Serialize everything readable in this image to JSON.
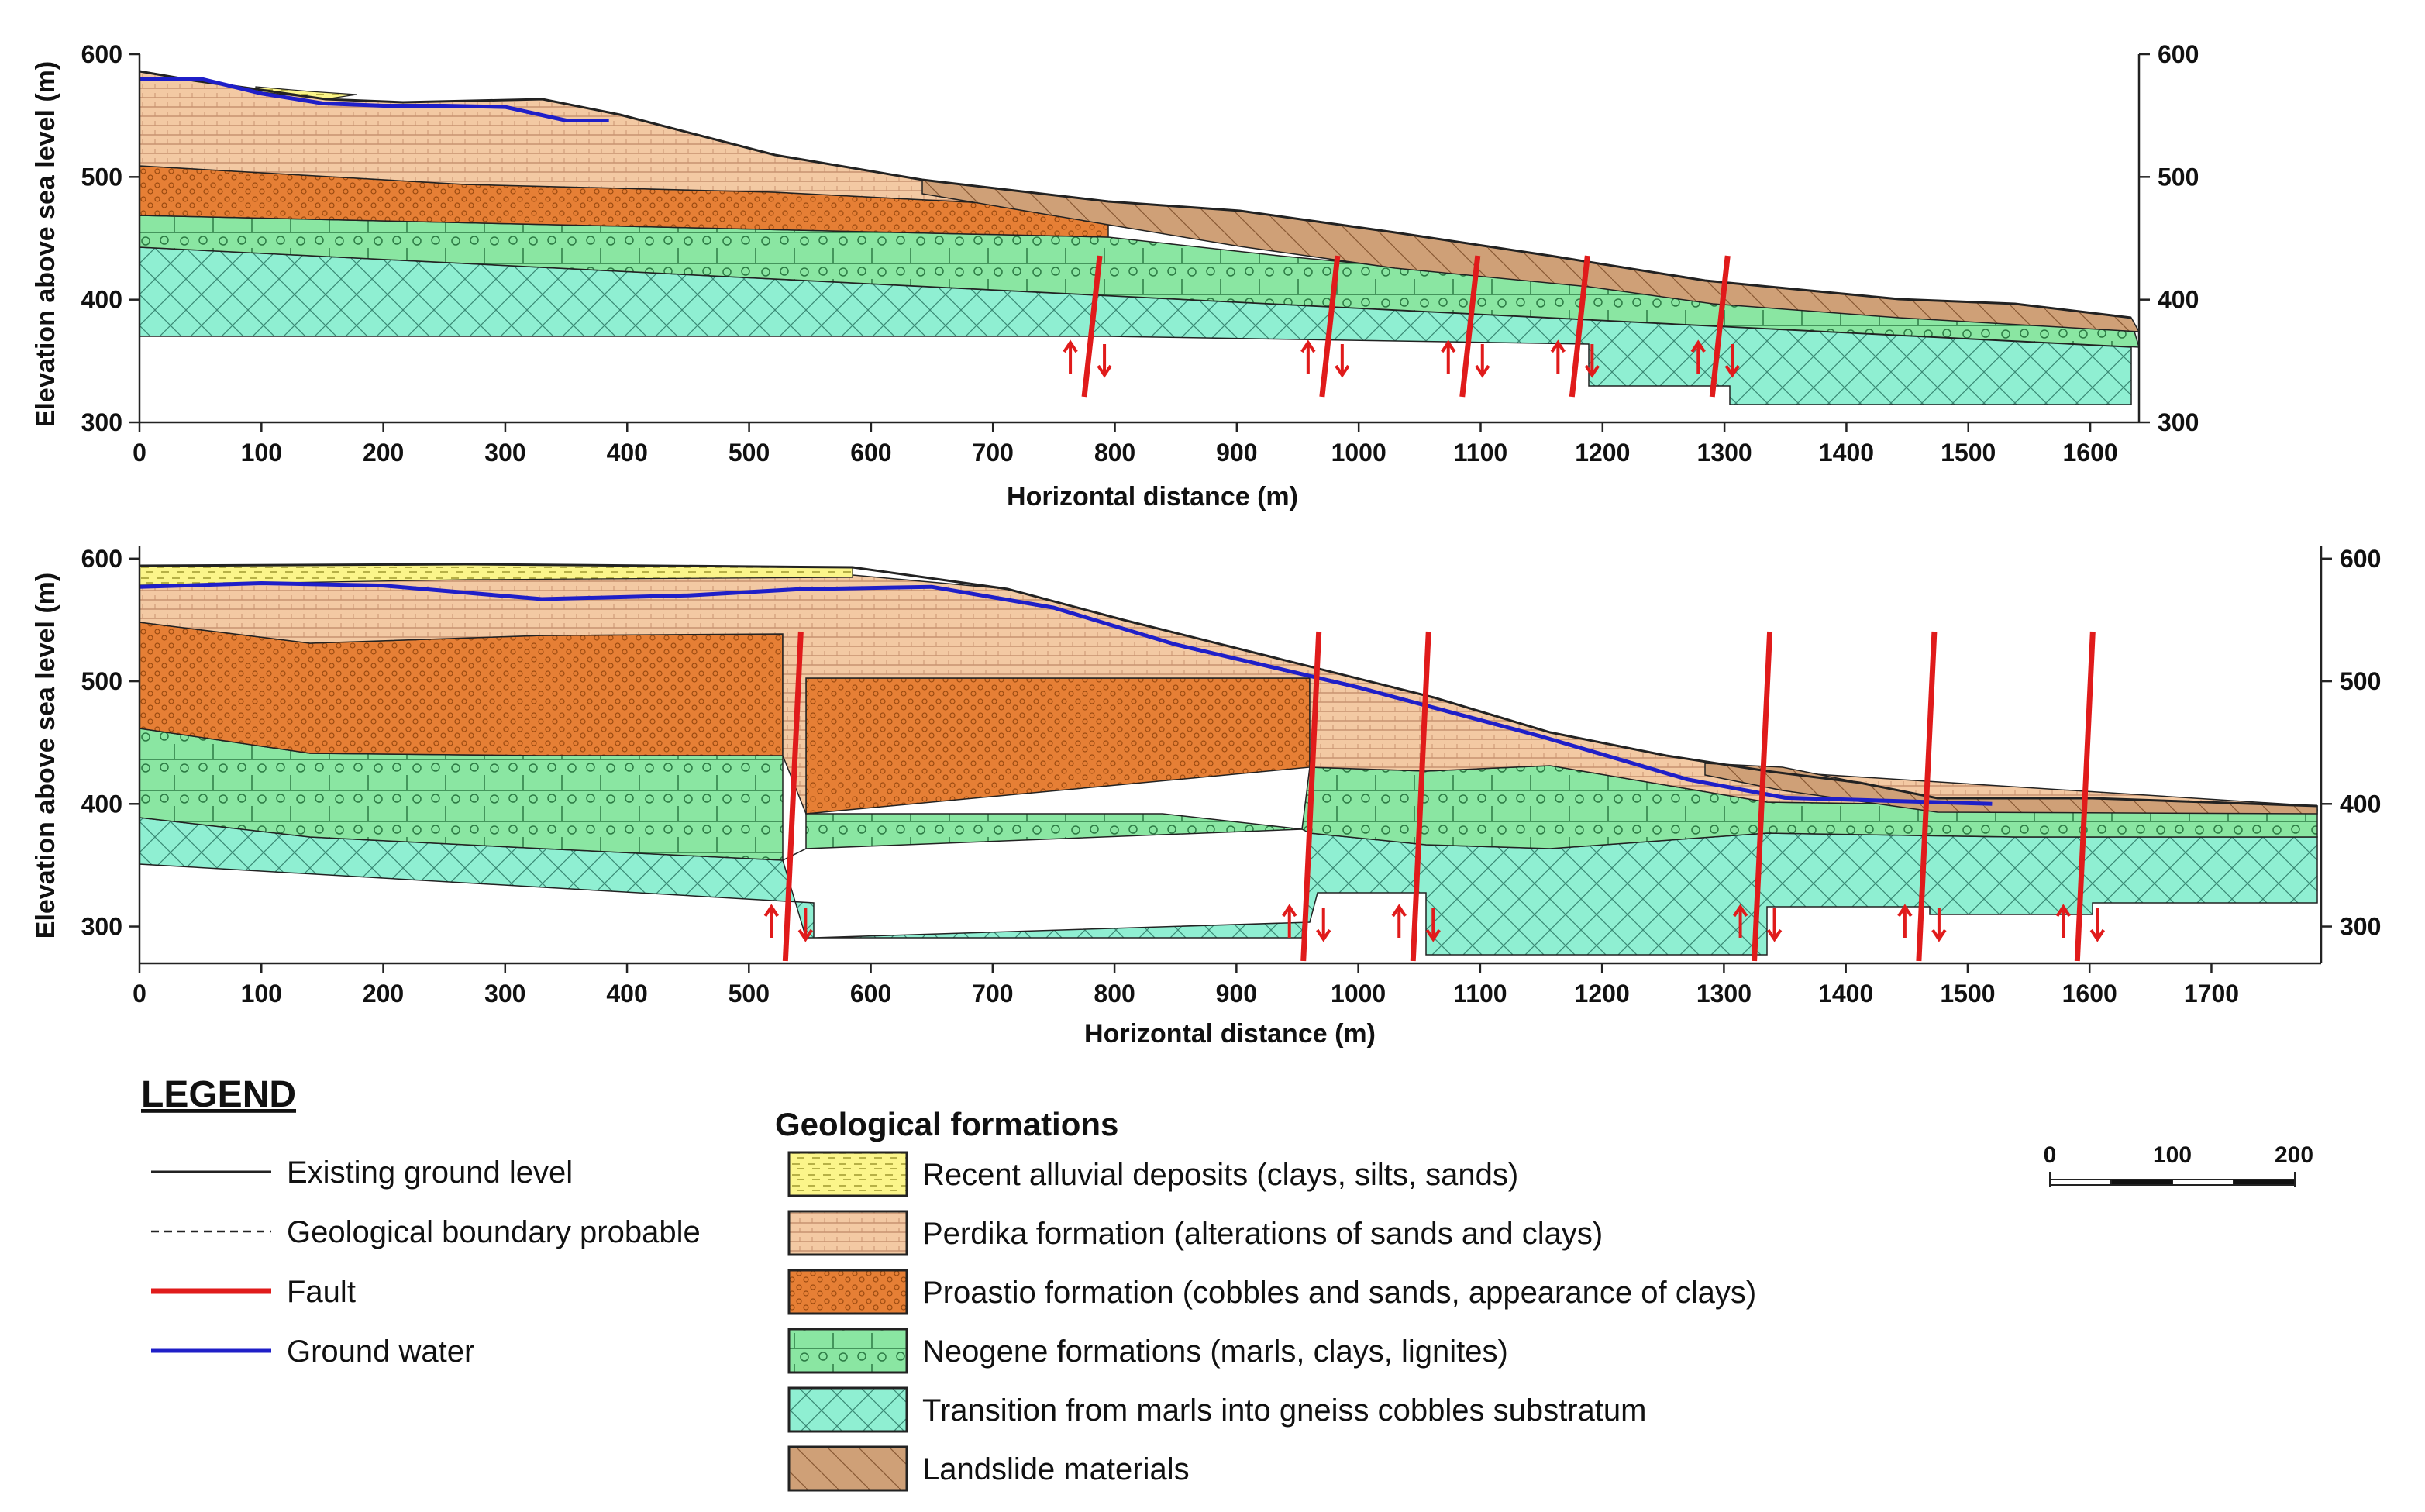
{
  "colors": {
    "alluvial": "#fbf58a",
    "perdika": "#f3c9a3",
    "proastio": "#e67f35",
    "neogene": "#8ae6a2",
    "transition": "#8fefd2",
    "landslide": "#cfa077",
    "fault": "#e01b1b",
    "groundwater": "#1f1fc8",
    "ground": "#222222"
  },
  "sections": [
    {
      "id": "top",
      "ylabel": "Elevation above sea level (m)",
      "xlabel": "Horizontal distance (m)",
      "xlim": [
        0,
        1640
      ],
      "ylim": [
        300,
        600
      ],
      "xticks": [
        "0",
        "100",
        "200",
        "300",
        "400",
        "500",
        "600",
        "700",
        "800",
        "900",
        "1000",
        "1100",
        "1200",
        "1300",
        "1400",
        "1500",
        "1600"
      ],
      "yticks": [
        "300",
        "400",
        "500",
        "600"
      ],
      "groundwater": [
        [
          0,
          580
        ],
        [
          50,
          580
        ],
        [
          100,
          568
        ],
        [
          150,
          560
        ],
        [
          200,
          558
        ],
        [
          250,
          558
        ],
        [
          300,
          557
        ],
        [
          350,
          546
        ],
        [
          385,
          546
        ]
      ],
      "faults": [
        780,
        975,
        1090,
        1180,
        1295
      ]
    },
    {
      "id": "bottom",
      "ylabel": "Elevation above sea level (m)",
      "xlabel": "Horizontal distance (m)",
      "xlim": [
        0,
        1790
      ],
      "ylim": [
        270,
        610
      ],
      "xticks": [
        "0",
        "100",
        "200",
        "300",
        "400",
        "500",
        "600",
        "700",
        "800",
        "900",
        "1000",
        "1100",
        "1200",
        "1300",
        "1400",
        "1500",
        "1600",
        "1700"
      ],
      "yticks": [
        "300",
        "400",
        "500",
        "600"
      ],
      "groundwater": [
        [
          0,
          577
        ],
        [
          100,
          580
        ],
        [
          200,
          578
        ],
        [
          330,
          567
        ],
        [
          450,
          570
        ],
        [
          540,
          575
        ],
        [
          650,
          577
        ],
        [
          750,
          560
        ],
        [
          850,
          530
        ],
        [
          1000,
          495
        ],
        [
          1150,
          455
        ],
        [
          1270,
          420
        ],
        [
          1350,
          405
        ],
        [
          1520,
          400
        ]
      ],
      "faults": [
        535,
        960,
        1050,
        1330,
        1465,
        1595
      ]
    }
  ],
  "legend": {
    "title": "LEGEND",
    "lines": [
      {
        "label": "Existing ground level",
        "style": "ground"
      },
      {
        "label": "Geological boundary probable",
        "style": "boundary"
      },
      {
        "label": "Fault",
        "style": "fault"
      },
      {
        "label": "Ground water",
        "style": "groundwater"
      }
    ],
    "formations_title": "Geological formations",
    "formations": [
      {
        "label": "Recent alluvial deposits (clays, silts, sands)",
        "key": "alluvial"
      },
      {
        "label": "Perdika formation (alterations of sands and clays)",
        "key": "perdika"
      },
      {
        "label": "Proastio formation (cobbles and sands, appearance of clays)",
        "key": "proastio"
      },
      {
        "label": "Neogene formations (marls, clays, lignites)",
        "key": "neogene"
      },
      {
        "label": "Transition from marls into gneiss cobbles substratum",
        "key": "transition"
      },
      {
        "label": "Landslide materials",
        "key": "landslide"
      }
    ],
    "scale": {
      "labels": [
        "0",
        "100",
        "200"
      ]
    }
  }
}
